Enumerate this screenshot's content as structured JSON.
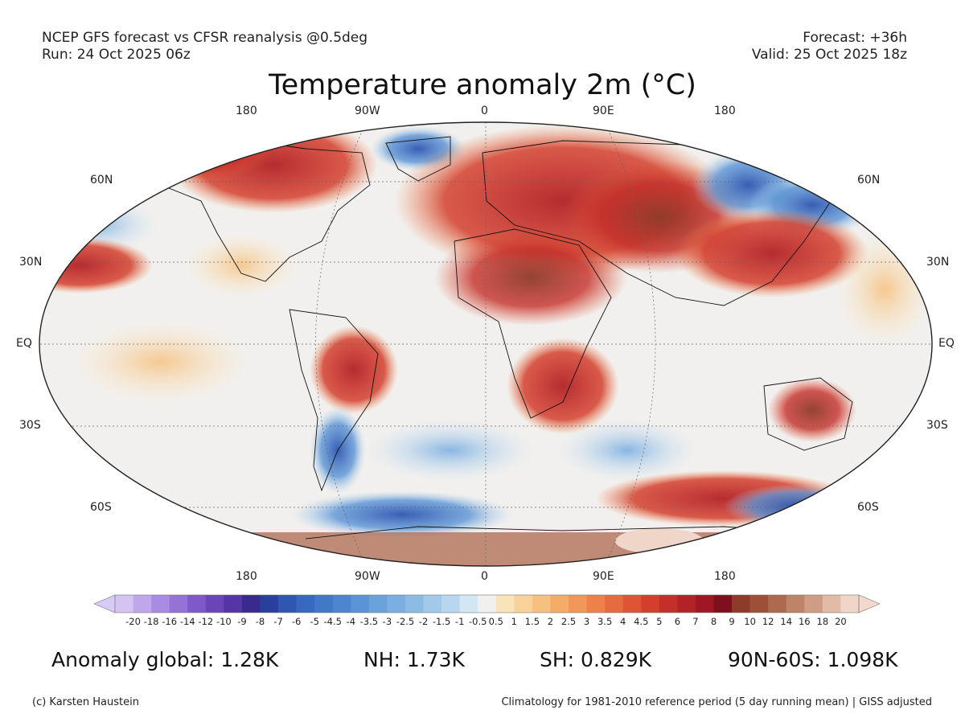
{
  "header": {
    "source": "NCEP GFS forecast vs CFSR reanalysis @0.5deg",
    "run": "Run: 24 Oct 2025 06z",
    "forecast": "Forecast: +36h",
    "valid": "Valid: 25 Oct 2025 18z"
  },
  "title": "Temperature anomaly 2m (°C)",
  "map": {
    "projection": "robinson",
    "lon_labels_top": [
      "180",
      "90W",
      "0",
      "90E",
      "180"
    ],
    "lon_labels_bottom": [
      "180",
      "90W",
      "0",
      "90E",
      "180"
    ],
    "lat_labels_left": [
      "60N",
      "30N",
      "EQ",
      "30S",
      "60S"
    ],
    "lat_labels_right": [
      "60N",
      "30N",
      "EQ",
      "30S",
      "60S"
    ],
    "field": "2m temperature anomaly",
    "background_color": "#f2f0ee"
  },
  "colorbar": {
    "labels": [
      "-20",
      "-18",
      "-16",
      "-14",
      "-12",
      "-10",
      "-9",
      "-8",
      "-7",
      "-6",
      "-5",
      "-4.5",
      "-4",
      "-3.5",
      "-3",
      "-2.5",
      "-2",
      "-1.5",
      "-1",
      "-0.5",
      "0.5",
      "1",
      "1.5",
      "2",
      "2.5",
      "3",
      "3.5",
      "4",
      "4.5",
      "5",
      "6",
      "7",
      "8",
      "9",
      "10",
      "12",
      "14",
      "16",
      "18",
      "20"
    ],
    "colors": [
      "#d3c4f2",
      "#bfa7ec",
      "#a98be3",
      "#9472d6",
      "#7f59c9",
      "#6a45b8",
      "#5535a5",
      "#3a2a8e",
      "#283f9e",
      "#2f56b1",
      "#3769c0",
      "#4278c8",
      "#4d86cf",
      "#5a94d6",
      "#6aa2dc",
      "#7bafe1",
      "#8cbce6",
      "#a0c9ea",
      "#b8d7ef",
      "#d3e6f4",
      "#f2f0ee",
      "#f9e3b8",
      "#f8d29a",
      "#f6c07f",
      "#f4ac68",
      "#f19757",
      "#ec8149",
      "#e66b3e",
      "#df5434",
      "#d43f2d",
      "#c52f29",
      "#b32226",
      "#9e1722",
      "#7e0f1c",
      "#8e3b2b",
      "#9c5038",
      "#ad6a4f",
      "#be8468",
      "#cf9d83",
      "#e2bba6",
      "#f0d6c8"
    ],
    "left_arrow_color": "#d8cbf5",
    "right_arrow_color": "#f2d9cc"
  },
  "anomalies": {
    "global": "Anomaly global: 1.28K",
    "nh": "NH: 1.73K",
    "sh": "SH: 0.829K",
    "band": "90N-60S: 1.098K"
  },
  "footer": {
    "credit": "(c) Karsten Haustein",
    "note": "Climatology for 1981-2010 reference period (5 day running mean) | GISS adjusted"
  }
}
